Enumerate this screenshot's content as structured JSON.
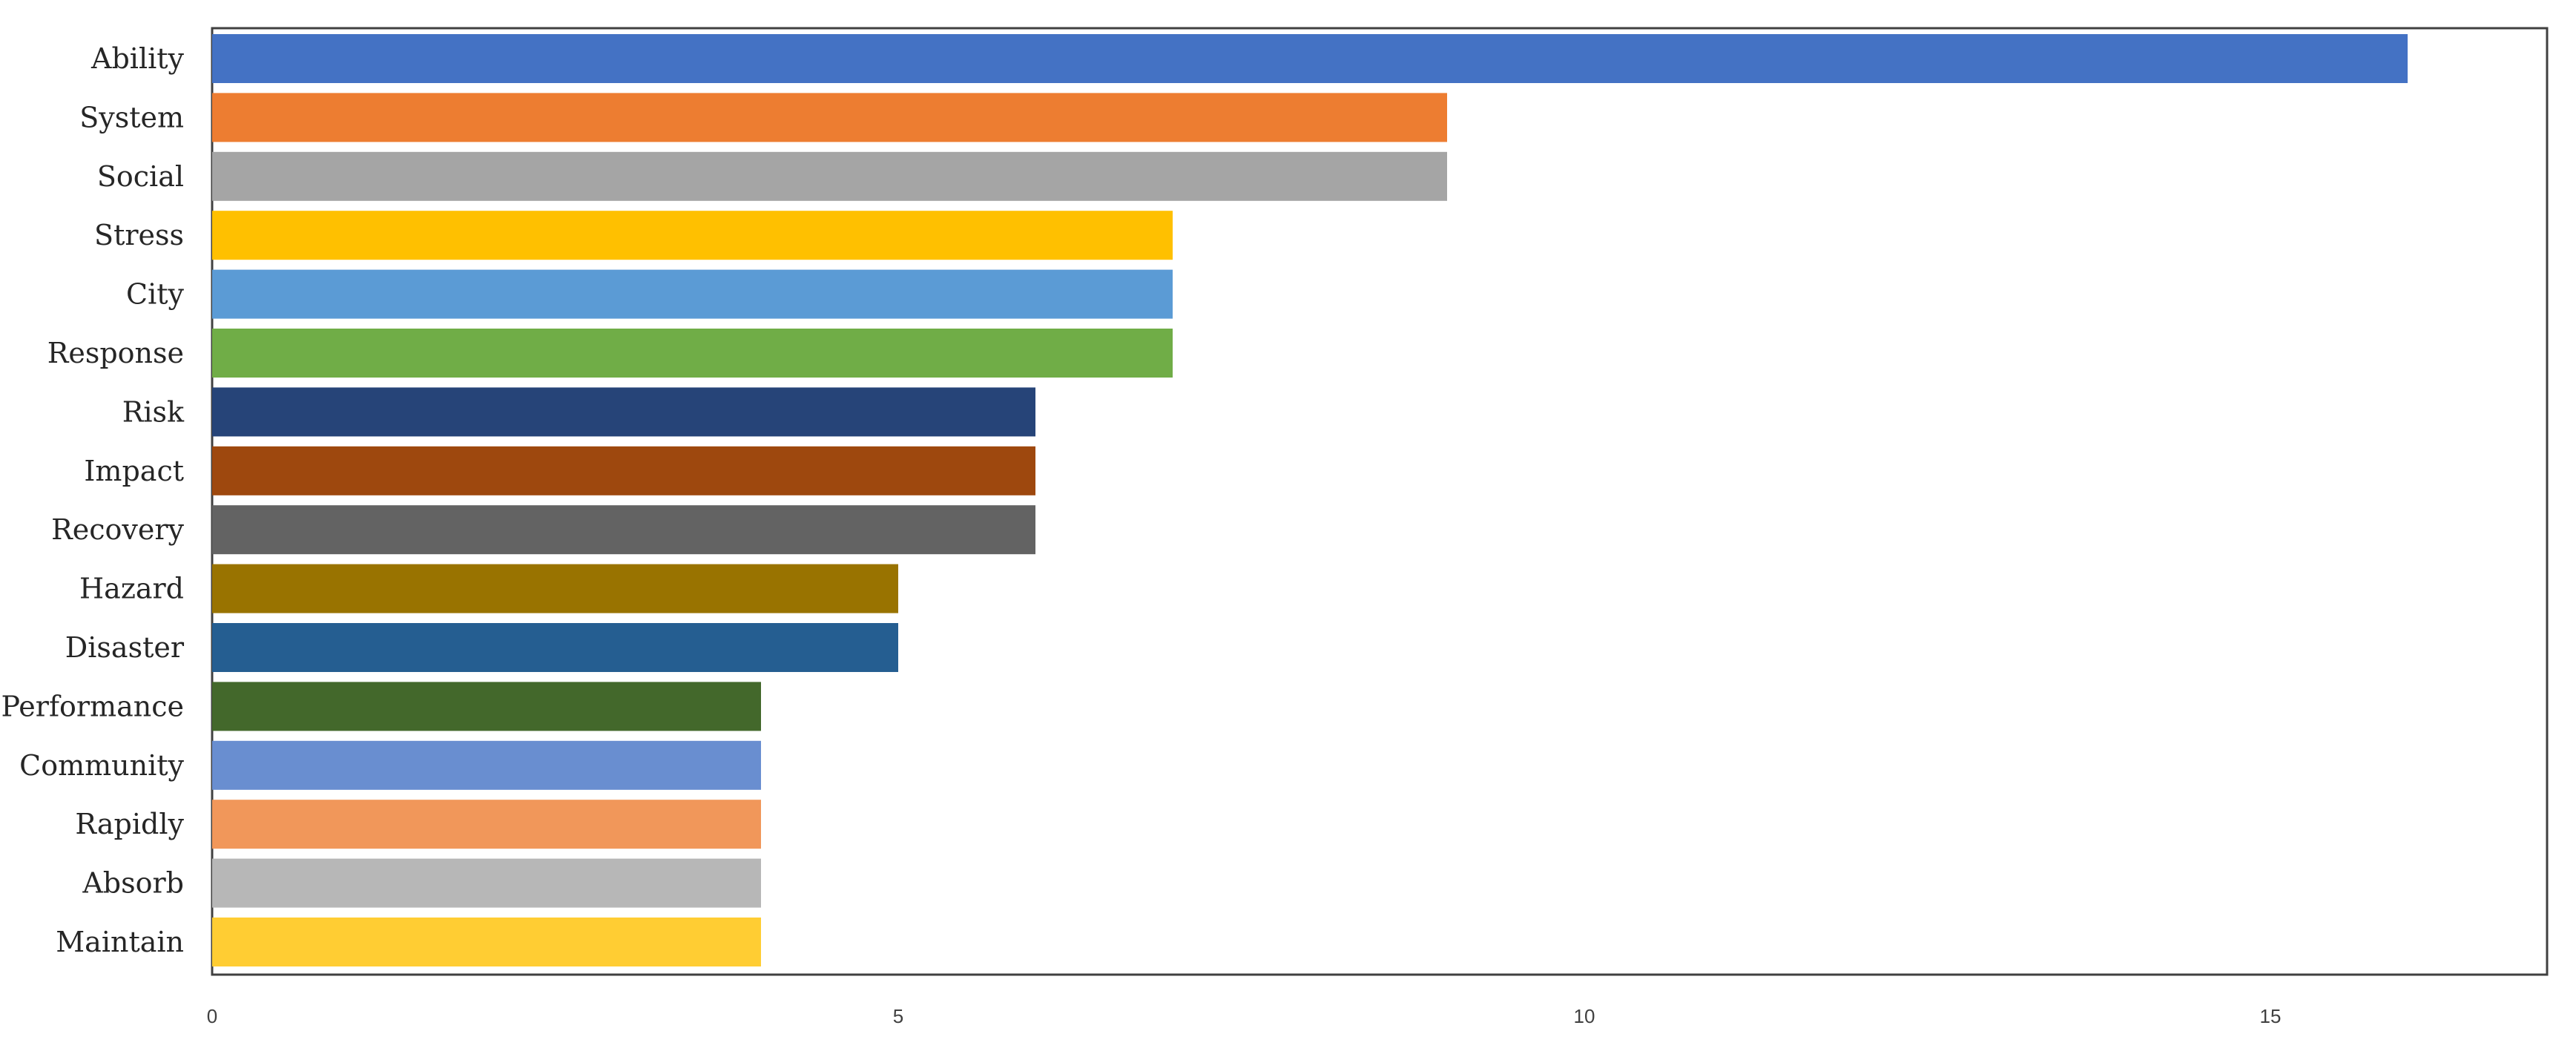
{
  "chart_data": {
    "type": "bar",
    "orientation": "horizontal",
    "title": "",
    "xlabel": "",
    "ylabel": "",
    "categories": [
      "Ability",
      "System",
      "Social",
      "Stress",
      "City",
      "Response",
      "Risk",
      "Impact",
      "Recovery",
      "Hazard",
      "Disaster",
      "Performance",
      "Community",
      "Rapidly",
      "Absorb",
      "Maintain"
    ],
    "values": [
      16,
      9,
      9,
      7,
      7,
      7,
      6,
      6,
      6,
      5,
      5,
      4,
      4,
      4,
      4,
      4
    ],
    "colors": [
      "#4472C4",
      "#ED7D31",
      "#A5A5A5",
      "#FFC000",
      "#5B9BD5",
      "#70AD47",
      "#264478",
      "#9E480E",
      "#636363",
      "#997300",
      "#255E91",
      "#43682B",
      "#698ED0",
      "#F1975A",
      "#B7B7B7",
      "#FFCD33"
    ],
    "xlim": [
      0,
      17
    ],
    "xticks": [
      0,
      5,
      10,
      15
    ],
    "xtick_labels": [
      "0",
      "5",
      "10",
      "15"
    ],
    "grid": false,
    "legend": "none"
  }
}
